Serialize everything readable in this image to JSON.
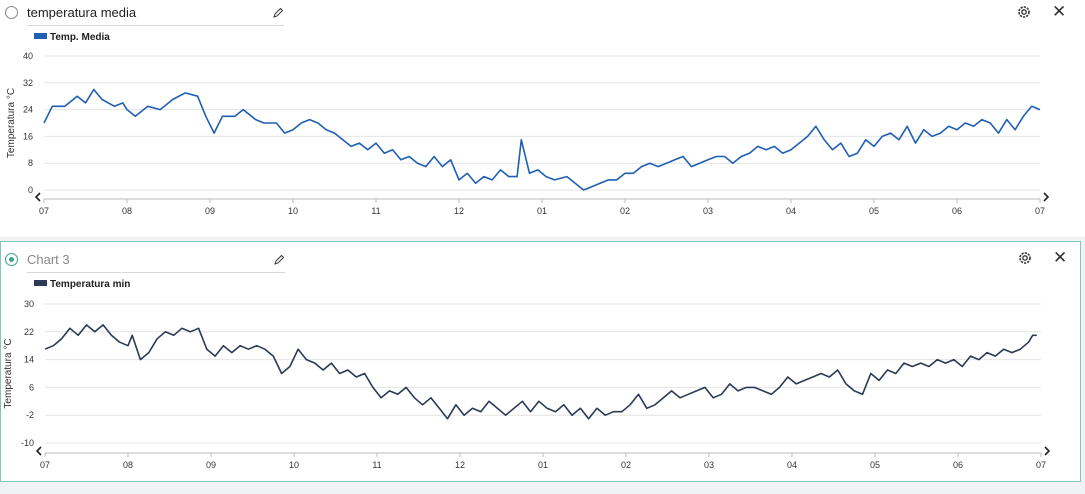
{
  "panels": [
    {
      "title": "temperatura media",
      "legend_label": "Temp. Media",
      "line_color": "#1f5fb4",
      "title_is_placeholder": false,
      "selected": false
    },
    {
      "title": "Chart 3",
      "legend_label": "Temperatura min",
      "line_color": "#2b3a55",
      "title_is_placeholder": true,
      "selected": true
    }
  ],
  "icons": {
    "edit": "pencil-icon",
    "settings": "gear-icon",
    "close": "close-icon",
    "prev": "chevron-left-icon",
    "next": "chevron-right-icon"
  },
  "chart_data": [
    {
      "type": "line",
      "title": "",
      "ylabel": "Temperatura °C",
      "xlabel": "",
      "x_tick_labels": [
        "07",
        "08",
        "09",
        "10",
        "11",
        "12",
        "01",
        "02",
        "03",
        "04",
        "05",
        "06",
        "07"
      ],
      "y_ticks": [
        0,
        8,
        16,
        24,
        32,
        40
      ],
      "ylim": [
        0,
        40
      ],
      "grid": true,
      "legend": "top-left",
      "series": [
        {
          "name": "Temp. Media",
          "points": [
            [
              0,
              20
            ],
            [
              0.1,
              25
            ],
            [
              0.25,
              25
            ],
            [
              0.4,
              28
            ],
            [
              0.5,
              26
            ],
            [
              0.6,
              30
            ],
            [
              0.7,
              27
            ],
            [
              0.85,
              25
            ],
            [
              0.95,
              26
            ],
            [
              1.0,
              24
            ],
            [
              1.1,
              22
            ],
            [
              1.25,
              25
            ],
            [
              1.4,
              24
            ],
            [
              1.55,
              27
            ],
            [
              1.7,
              29
            ],
            [
              1.85,
              28
            ],
            [
              1.95,
              22
            ],
            [
              2.05,
              17
            ],
            [
              2.15,
              22
            ],
            [
              2.3,
              22
            ],
            [
              2.4,
              24
            ],
            [
              2.55,
              21
            ],
            [
              2.65,
              20
            ],
            [
              2.8,
              20
            ],
            [
              2.9,
              17
            ],
            [
              3.0,
              18
            ],
            [
              3.1,
              20
            ],
            [
              3.2,
              21
            ],
            [
              3.3,
              20
            ],
            [
              3.4,
              18
            ],
            [
              3.5,
              17
            ],
            [
              3.6,
              15
            ],
            [
              3.7,
              13
            ],
            [
              3.8,
              14
            ],
            [
              3.9,
              12
            ],
            [
              4.0,
              14
            ],
            [
              4.1,
              11
            ],
            [
              4.2,
              12
            ],
            [
              4.3,
              9
            ],
            [
              4.4,
              10
            ],
            [
              4.5,
              8
            ],
            [
              4.6,
              7
            ],
            [
              4.7,
              10
            ],
            [
              4.8,
              7
            ],
            [
              4.9,
              9
            ],
            [
              5.0,
              3
            ],
            [
              5.1,
              5
            ],
            [
              5.2,
              2
            ],
            [
              5.3,
              4
            ],
            [
              5.4,
              3
            ],
            [
              5.5,
              6
            ],
            [
              5.6,
              4
            ],
            [
              5.7,
              4
            ],
            [
              5.75,
              15
            ],
            [
              5.85,
              5
            ],
            [
              5.95,
              6
            ],
            [
              6.05,
              4
            ],
            [
              6.15,
              3
            ],
            [
              6.3,
              4
            ],
            [
              6.4,
              2
            ],
            [
              6.5,
              0
            ],
            [
              6.6,
              1
            ],
            [
              6.7,
              2
            ],
            [
              6.8,
              3
            ],
            [
              6.9,
              3
            ],
            [
              7.0,
              5
            ],
            [
              7.1,
              5
            ],
            [
              7.2,
              7
            ],
            [
              7.3,
              8
            ],
            [
              7.4,
              7
            ],
            [
              7.5,
              8
            ],
            [
              7.6,
              9
            ],
            [
              7.7,
              10
            ],
            [
              7.8,
              7
            ],
            [
              7.9,
              8
            ],
            [
              8.0,
              9
            ],
            [
              8.1,
              10
            ],
            [
              8.2,
              10
            ],
            [
              8.3,
              8
            ],
            [
              8.4,
              10
            ],
            [
              8.5,
              11
            ],
            [
              8.6,
              13
            ],
            [
              8.7,
              12
            ],
            [
              8.8,
              13
            ],
            [
              8.9,
              11
            ],
            [
              9.0,
              12
            ],
            [
              9.1,
              14
            ],
            [
              9.2,
              16
            ],
            [
              9.3,
              19
            ],
            [
              9.4,
              15
            ],
            [
              9.5,
              12
            ],
            [
              9.6,
              14
            ],
            [
              9.7,
              10
            ],
            [
              9.8,
              11
            ],
            [
              9.9,
              15
            ],
            [
              10.0,
              13
            ],
            [
              10.1,
              16
            ],
            [
              10.2,
              17
            ],
            [
              10.3,
              15
            ],
            [
              10.4,
              19
            ],
            [
              10.5,
              14
            ],
            [
              10.6,
              18
            ],
            [
              10.7,
              16
            ],
            [
              10.8,
              17
            ],
            [
              10.9,
              19
            ],
            [
              11.0,
              18
            ],
            [
              11.1,
              20
            ],
            [
              11.2,
              19
            ],
            [
              11.3,
              21
            ],
            [
              11.4,
              20
            ],
            [
              11.5,
              17
            ],
            [
              11.6,
              21
            ],
            [
              11.7,
              18
            ],
            [
              11.8,
              22
            ],
            [
              11.9,
              25
            ],
            [
              12.0,
              24
            ]
          ]
        }
      ]
    },
    {
      "type": "line",
      "title": "",
      "ylabel": "Temperatura °C",
      "xlabel": "",
      "x_tick_labels": [
        "07",
        "08",
        "09",
        "10",
        "11",
        "12",
        "01",
        "02",
        "03",
        "04",
        "05",
        "06",
        "07"
      ],
      "y_ticks": [
        -10,
        -2,
        6,
        14,
        22,
        30
      ],
      "ylim": [
        -10,
        30
      ],
      "grid": true,
      "legend": "top-left",
      "series": [
        {
          "name": "Temperatura min",
          "points": [
            [
              0,
              17
            ],
            [
              0.1,
              18
            ],
            [
              0.2,
              20
            ],
            [
              0.3,
              23
            ],
            [
              0.4,
              21
            ],
            [
              0.5,
              24
            ],
            [
              0.6,
              22
            ],
            [
              0.7,
              24
            ],
            [
              0.8,
              21
            ],
            [
              0.9,
              19
            ],
            [
              1.0,
              18
            ],
            [
              1.05,
              21
            ],
            [
              1.15,
              14
            ],
            [
              1.25,
              16
            ],
            [
              1.35,
              20
            ],
            [
              1.45,
              22
            ],
            [
              1.55,
              21
            ],
            [
              1.65,
              23
            ],
            [
              1.75,
              22
            ],
            [
              1.85,
              23
            ],
            [
              1.95,
              17
            ],
            [
              2.05,
              15
            ],
            [
              2.15,
              18
            ],
            [
              2.25,
              16
            ],
            [
              2.35,
              18
            ],
            [
              2.45,
              17
            ],
            [
              2.55,
              18
            ],
            [
              2.65,
              17
            ],
            [
              2.75,
              15
            ],
            [
              2.85,
              10
            ],
            [
              2.95,
              12
            ],
            [
              3.05,
              17
            ],
            [
              3.15,
              14
            ],
            [
              3.25,
              13
            ],
            [
              3.35,
              11
            ],
            [
              3.45,
              13
            ],
            [
              3.55,
              10
            ],
            [
              3.65,
              11
            ],
            [
              3.75,
              9
            ],
            [
              3.85,
              10
            ],
            [
              3.95,
              6
            ],
            [
              4.05,
              3
            ],
            [
              4.15,
              5
            ],
            [
              4.25,
              4
            ],
            [
              4.35,
              6
            ],
            [
              4.45,
              3
            ],
            [
              4.55,
              1
            ],
            [
              4.65,
              3
            ],
            [
              4.75,
              0
            ],
            [
              4.85,
              -3
            ],
            [
              4.95,
              1
            ],
            [
              5.05,
              -2
            ],
            [
              5.15,
              0
            ],
            [
              5.25,
              -1
            ],
            [
              5.35,
              2
            ],
            [
              5.45,
              0
            ],
            [
              5.55,
              -2
            ],
            [
              5.65,
              0
            ],
            [
              5.75,
              2
            ],
            [
              5.85,
              -1
            ],
            [
              5.95,
              2
            ],
            [
              6.05,
              0
            ],
            [
              6.15,
              -1
            ],
            [
              6.25,
              1
            ],
            [
              6.35,
              -2
            ],
            [
              6.45,
              0
            ],
            [
              6.55,
              -3
            ],
            [
              6.65,
              0
            ],
            [
              6.75,
              -2
            ],
            [
              6.85,
              -1
            ],
            [
              6.95,
              -1
            ],
            [
              7.05,
              1
            ],
            [
              7.15,
              4
            ],
            [
              7.25,
              0
            ],
            [
              7.35,
              1
            ],
            [
              7.45,
              3
            ],
            [
              7.55,
              5
            ],
            [
              7.65,
              3
            ],
            [
              7.75,
              4
            ],
            [
              7.85,
              5
            ],
            [
              7.95,
              6
            ],
            [
              8.05,
              3
            ],
            [
              8.15,
              4
            ],
            [
              8.25,
              7
            ],
            [
              8.35,
              5
            ],
            [
              8.45,
              6
            ],
            [
              8.55,
              6
            ],
            [
              8.65,
              5
            ],
            [
              8.75,
              4
            ],
            [
              8.85,
              6
            ],
            [
              8.95,
              9
            ],
            [
              9.05,
              7
            ],
            [
              9.15,
              8
            ],
            [
              9.25,
              9
            ],
            [
              9.35,
              10
            ],
            [
              9.45,
              9
            ],
            [
              9.55,
              11
            ],
            [
              9.65,
              7
            ],
            [
              9.75,
              5
            ],
            [
              9.85,
              4
            ],
            [
              9.95,
              10
            ],
            [
              10.05,
              8
            ],
            [
              10.15,
              11
            ],
            [
              10.25,
              10
            ],
            [
              10.35,
              13
            ],
            [
              10.45,
              12
            ],
            [
              10.55,
              13
            ],
            [
              10.65,
              12
            ],
            [
              10.75,
              14
            ],
            [
              10.85,
              13
            ],
            [
              10.95,
              14
            ],
            [
              11.05,
              12
            ],
            [
              11.15,
              15
            ],
            [
              11.25,
              14
            ],
            [
              11.35,
              16
            ],
            [
              11.45,
              15
            ],
            [
              11.55,
              17
            ],
            [
              11.65,
              16
            ],
            [
              11.75,
              17
            ],
            [
              11.85,
              19
            ],
            [
              11.9,
              21
            ],
            [
              11.95,
              21
            ]
          ]
        }
      ]
    }
  ]
}
